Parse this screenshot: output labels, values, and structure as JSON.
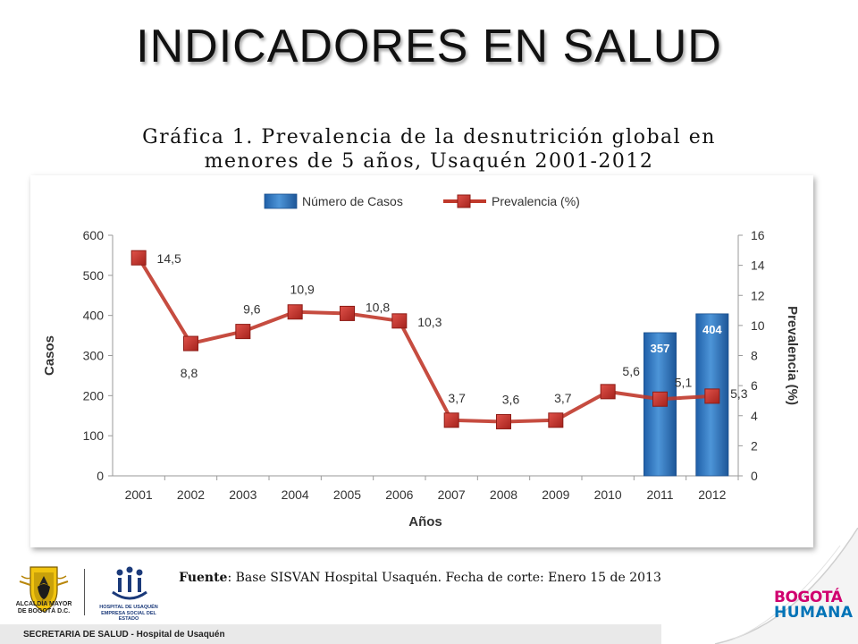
{
  "slide": {
    "title": "INDICADORES EN SALUD",
    "footer": "SECRETARIA DE SALUD - Hospital de Usaquén",
    "source_label": "Fuente",
    "source_text": ": Base SISVAN Hospital Usaquén. Fecha de corte: Enero 15 de 2013",
    "logo_left_lines": [
      "ALCALDÍA MAYOR",
      "DE BOGOTÁ D.C."
    ],
    "logo_hospital_lines": [
      "HOSPITAL DE USAQUÉN",
      "EMPRESA SOCIAL DEL ESTADO"
    ],
    "brand_line1": "BOGOTÁ",
    "brand_line2": "HUMANA"
  },
  "chart_data": {
    "type": "bar",
    "title_lines": [
      "Gráfica 1. Prevalencia de la desnutrición global en",
      "menores de 5 años, Usaquén 2001-2012"
    ],
    "xlabel": "Años",
    "ylabel": "Casos",
    "y2label": "Prevalencia (%)",
    "ylim": [
      0,
      600
    ],
    "y2lim": [
      0,
      16
    ],
    "yticks": [
      "0",
      "100",
      "200",
      "300",
      "400",
      "500",
      "600"
    ],
    "y2ticks": [
      "0",
      "2",
      "4",
      "6",
      "8",
      "10",
      "12",
      "14",
      "16"
    ],
    "categories": [
      "2001",
      "2002",
      "2003",
      "2004",
      "2005",
      "2006",
      "2007",
      "2008",
      "2009",
      "2010",
      "2011",
      "2012"
    ],
    "legend_position": "top",
    "grid": false,
    "series": [
      {
        "name": "Número de Casos",
        "type": "bar",
        "axis": "left",
        "color": "#2e75c0",
        "values": [
          null,
          null,
          null,
          null,
          null,
          null,
          null,
          null,
          null,
          null,
          357,
          404
        ],
        "labels": [
          "",
          "",
          "",
          "",
          "",
          "",
          "",
          "",
          "",
          "",
          "357",
          "404"
        ]
      },
      {
        "name": "Prevalencia (%)",
        "type": "line",
        "axis": "right",
        "color": "#c0392b",
        "values": [
          14.5,
          8.8,
          9.6,
          10.9,
          10.8,
          10.3,
          3.7,
          3.6,
          3.7,
          5.6,
          5.1,
          5.3
        ],
        "labels": [
          "14,5",
          "8,8",
          "9,6",
          "10,9",
          "10,8",
          "10,3",
          "3,7",
          "3,6",
          "3,7",
          "5,6",
          "5,1",
          "5,3"
        ]
      }
    ]
  }
}
